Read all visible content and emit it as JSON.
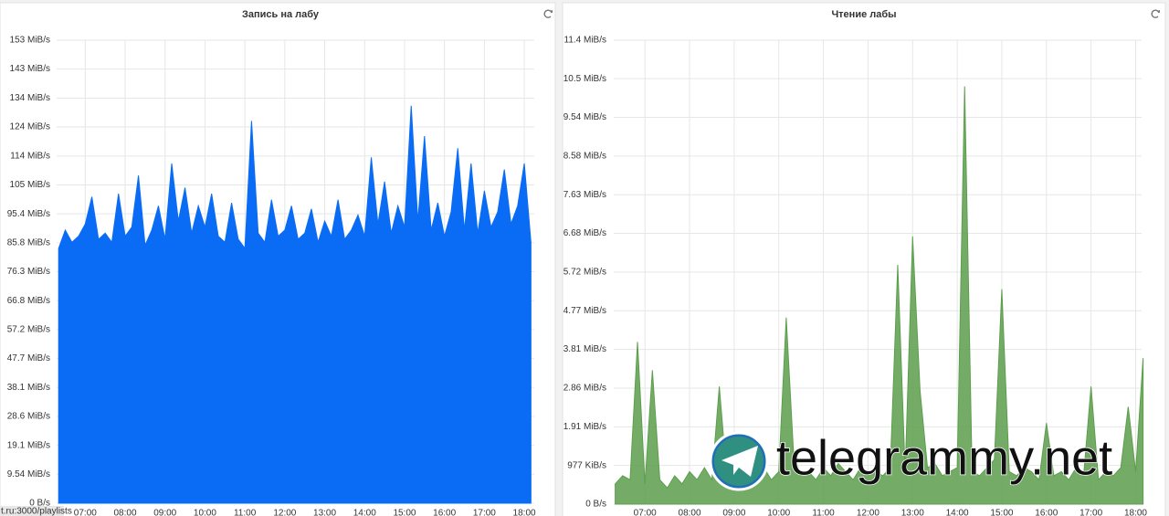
{
  "chart_data": [
    {
      "type": "area",
      "title": "Запись на лабу",
      "color": "#0a6cf5",
      "x": [
        "06:20",
        "06:30",
        "06:40",
        "06:50",
        "07:00",
        "07:10",
        "07:20",
        "07:30",
        "07:40",
        "07:50",
        "08:00",
        "08:10",
        "08:20",
        "08:30",
        "08:40",
        "08:50",
        "09:00",
        "09:10",
        "09:20",
        "09:30",
        "09:40",
        "09:50",
        "10:00",
        "10:10",
        "10:20",
        "10:30",
        "10:40",
        "10:50",
        "11:00",
        "11:10",
        "11:20",
        "11:30",
        "11:40",
        "11:50",
        "12:00",
        "12:10",
        "12:20",
        "12:30",
        "12:40",
        "12:50",
        "13:00",
        "13:10",
        "13:20",
        "13:30",
        "13:40",
        "13:50",
        "14:00",
        "14:10",
        "14:20",
        "14:30",
        "14:40",
        "14:50",
        "15:00",
        "15:10",
        "15:20",
        "15:30",
        "15:40",
        "15:50",
        "16:00",
        "16:10",
        "16:20",
        "16:30",
        "16:40",
        "16:50",
        "17:00",
        "17:10",
        "17:20",
        "17:30",
        "17:40",
        "17:50",
        "18:00",
        "18:10"
      ],
      "values": [
        84,
        90,
        86,
        88,
        92,
        101,
        87,
        89,
        86,
        102,
        88,
        91,
        108,
        85,
        90,
        98,
        87,
        112,
        93,
        104,
        89,
        98,
        91,
        102,
        88,
        86,
        99,
        87,
        84,
        126,
        89,
        86,
        100,
        88,
        90,
        98,
        87,
        89,
        97,
        86,
        93,
        88,
        100,
        87,
        90,
        95,
        88,
        114,
        92,
        106,
        89,
        98,
        91,
        131,
        93,
        121,
        90,
        99,
        88,
        96,
        117,
        90,
        112,
        89,
        103,
        91,
        96,
        110,
        92,
        98,
        112,
        86
      ],
      "xlim": [
        "06:17",
        "18:15"
      ],
      "xticks": [
        "07:00",
        "08:00",
        "09:00",
        "10:00",
        "11:00",
        "12:00",
        "13:00",
        "14:00",
        "15:00",
        "16:00",
        "17:00",
        "18:00"
      ],
      "ylim": [
        0,
        152.6
      ],
      "yticks": [
        {
          "value": 0,
          "label": "0 B/s"
        },
        {
          "value": 9.54,
          "label": "9.54 MiB/s"
        },
        {
          "value": 19.07,
          "label": "19.1 MiB/s"
        },
        {
          "value": 28.61,
          "label": "28.6 MiB/s"
        },
        {
          "value": 38.15,
          "label": "38.1 MiB/s"
        },
        {
          "value": 47.68,
          "label": "47.7 MiB/s"
        },
        {
          "value": 57.22,
          "label": "57.2 MiB/s"
        },
        {
          "value": 66.76,
          "label": "66.8 MiB/s"
        },
        {
          "value": 76.29,
          "label": "76.3 MiB/s"
        },
        {
          "value": 85.83,
          "label": "85.8 MiB/s"
        },
        {
          "value": 95.37,
          "label": "95.4 MiB/s"
        },
        {
          "value": 104.9,
          "label": "105 MiB/s"
        },
        {
          "value": 114.4,
          "label": "114 MiB/s"
        },
        {
          "value": 124.0,
          "label": "124 MiB/s"
        },
        {
          "value": 133.5,
          "label": "134 MiB/s"
        },
        {
          "value": 143.1,
          "label": "143 MiB/s"
        },
        {
          "value": 152.6,
          "label": "153 MiB/s"
        }
      ],
      "grid": true
    },
    {
      "type": "area",
      "title": "Чтение лабы",
      "color": "#5c9e4c",
      "x": [
        "06:20",
        "06:30",
        "06:40",
        "06:50",
        "07:00",
        "07:10",
        "07:20",
        "07:30",
        "07:40",
        "07:50",
        "08:00",
        "08:10",
        "08:20",
        "08:30",
        "08:40",
        "08:50",
        "09:00",
        "09:10",
        "09:20",
        "09:30",
        "09:40",
        "09:50",
        "10:00",
        "10:10",
        "10:20",
        "10:30",
        "10:40",
        "10:50",
        "11:00",
        "11:10",
        "11:20",
        "11:30",
        "11:40",
        "11:50",
        "12:00",
        "12:10",
        "12:20",
        "12:30",
        "12:40",
        "12:50",
        "13:00",
        "13:10",
        "13:20",
        "13:30",
        "13:40",
        "13:50",
        "14:00",
        "14:10",
        "14:20",
        "14:30",
        "14:40",
        "14:50",
        "15:00",
        "15:10",
        "15:20",
        "15:30",
        "15:40",
        "15:50",
        "16:00",
        "16:10",
        "16:20",
        "16:30",
        "16:40",
        "16:50",
        "17:00",
        "17:10",
        "17:20",
        "17:30",
        "17:40",
        "17:50",
        "18:00",
        "18:10"
      ],
      "values": [
        0.5,
        0.7,
        0.6,
        4.0,
        0.5,
        3.3,
        0.6,
        0.4,
        0.7,
        0.5,
        0.8,
        0.6,
        0.9,
        0.6,
        2.9,
        0.7,
        0.5,
        0.8,
        0.6,
        0.7,
        0.9,
        0.6,
        0.8,
        4.6,
        1.2,
        0.7,
        0.8,
        0.6,
        0.9,
        0.7,
        1.0,
        0.8,
        0.6,
        0.9,
        0.7,
        0.8,
        0.7,
        0.9,
        5.9,
        0.8,
        6.6,
        2.8,
        0.9,
        1.0,
        0.7,
        0.8,
        0.9,
        10.3,
        0.8,
        0.7,
        0.9,
        1.1,
        5.3,
        0.8,
        0.7,
        0.9,
        0.8,
        0.6,
        2.0,
        0.7,
        0.8,
        0.6,
        0.9,
        0.7,
        2.9,
        0.6,
        0.8,
        0.7,
        0.9,
        2.4,
        0.8,
        3.6
      ],
      "xlim": [
        "06:18",
        "18:08"
      ],
      "xticks": [
        "07:00",
        "08:00",
        "09:00",
        "10:00",
        "11:00",
        "12:00",
        "13:00",
        "14:00",
        "15:00",
        "16:00",
        "17:00",
        "18:00"
      ],
      "ylim": [
        0,
        11.44
      ],
      "yticks": [
        {
          "value": 0,
          "label": "0 B/s"
        },
        {
          "value": 0.954,
          "label": "977 KiB/s"
        },
        {
          "value": 1.907,
          "label": "1.91 MiB/s"
        },
        {
          "value": 2.861,
          "label": "2.86 MiB/s"
        },
        {
          "value": 3.815,
          "label": "3.81 MiB/s"
        },
        {
          "value": 4.768,
          "label": "4.77 MiB/s"
        },
        {
          "value": 5.722,
          "label": "5.72 MiB/s"
        },
        {
          "value": 6.676,
          "label": "6.68 MiB/s"
        },
        {
          "value": 7.629,
          "label": "7.63 MiB/s"
        },
        {
          "value": 8.583,
          "label": "8.58 MiB/s"
        },
        {
          "value": 9.537,
          "label": "9.54 MiB/s"
        },
        {
          "value": 10.49,
          "label": "10.5 MiB/s"
        },
        {
          "value": 11.44,
          "label": "11.4 MiB/s"
        }
      ],
      "grid": true
    }
  ],
  "watermark": "telegrammy.net",
  "status_url": "t.ru:3000/playlists"
}
